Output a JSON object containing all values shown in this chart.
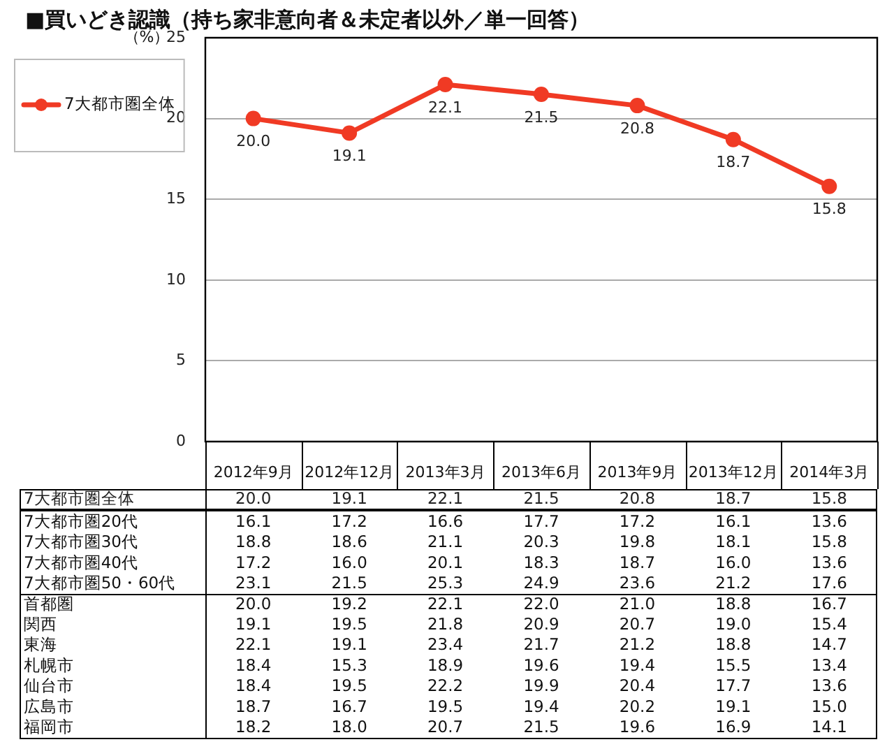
{
  "chart_data": [
    {
      "type": "line",
      "title": "■買いどき認識（持ち家非意向者＆未定者以外／単一回答）",
      "ylabel": "（%）",
      "categories": [
        "2012年9月",
        "2012年12月",
        "2013年3月",
        "2013年6月",
        "2013年9月",
        "2013年12月",
        "2014年3月"
      ],
      "series": [
        {
          "name": "7大都市圏全体",
          "color": "#f03a24",
          "values": [
            20.0,
            19.1,
            22.1,
            21.5,
            20.8,
            18.7,
            15.8
          ],
          "value_labels": [
            "20.0",
            "19.1",
            "22.1",
            "21.5",
            "20.8",
            "18.7",
            "15.8"
          ]
        }
      ],
      "ylim": [
        0,
        25
      ],
      "yticks": [
        0,
        5,
        10,
        15,
        20,
        25
      ],
      "grid": "y",
      "legend": "left",
      "marker": "circle",
      "data_labels": true
    },
    {
      "type": "other",
      "annotations": [
        "7大都市圏20代",
        "16.1",
        "17.2",
        "16.6",
        "17.7",
        "17.2",
        "16.1",
        "13.6",
        "7大都市圏30代",
        "18.8",
        "18.6",
        "21.1",
        "20.3",
        "19.8",
        "18.1",
        "15.8",
        "7大都市圏40代",
        "17.2",
        "16.0",
        "20.1",
        "18.3",
        "18.7",
        "16.0",
        "13.6",
        "7大都市圏50・60代",
        "23.1",
        "21.5",
        "25.3",
        "24.9",
        "23.6",
        "21.2",
        "17.6",
        "首都圏",
        "20.0",
        "19.2",
        "22.1",
        "22.0",
        "21.0",
        "18.8",
        "16.7",
        "関西",
        "19.1",
        "19.5",
        "21.8",
        "20.9",
        "20.7",
        "19.0",
        "15.4",
        "東海",
        "22.1",
        "19.1",
        "23.4",
        "21.7",
        "21.2",
        "18.8",
        "14.7",
        "札幌市",
        "18.4",
        "15.3",
        "18.9",
        "19.6",
        "19.4",
        "15.5",
        "13.4",
        "仙台市",
        "18.4",
        "19.5",
        "22.2",
        "19.9",
        "20.4",
        "17.7",
        "13.6",
        "広島市",
        "18.7",
        "16.7",
        "19.5",
        "19.4",
        "20.2",
        "19.1",
        "15.0",
        "福岡市",
        "18.2",
        "18.0",
        "20.7",
        "21.5",
        "19.6",
        "16.9",
        "14.1"
      ]
    }
  ]
}
